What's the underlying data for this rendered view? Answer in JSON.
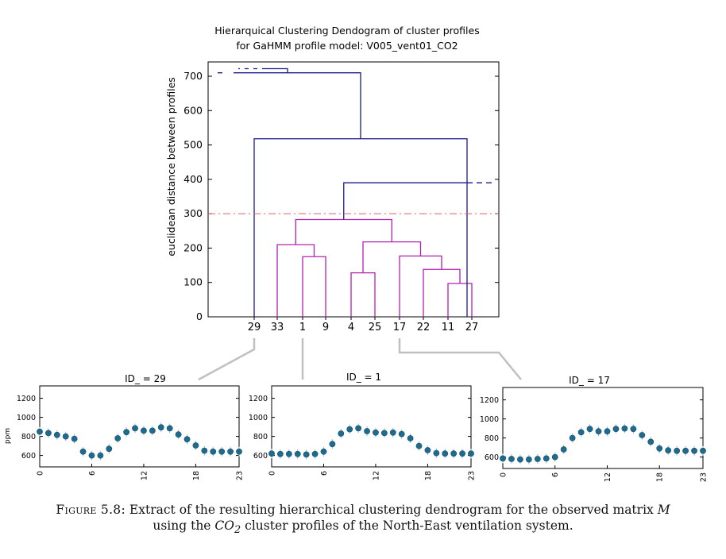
{
  "dendrogram": {
    "title_line1": "Hierarquical Clustering Dendogram of cluster profiles",
    "title_line2": "for GaHMM profile model: V005_vent01_CO2",
    "ylabel": "euclidean distance between profiles",
    "threshold": 300,
    "colors": {
      "upper": "#1a1a8c",
      "cluster": "#b020b0",
      "threshold": "#e06060",
      "connector": "#c0c0c0",
      "point": "#1f6a8f"
    }
  },
  "chart_data": [
    {
      "type": "dendrogram",
      "title": "Hierarquical Clustering Dendogram of cluster profiles for GaHMM profile model: V005_vent01_CO2",
      "ylabel": "euclidean distance between profiles",
      "ylim": [
        0,
        720
      ],
      "yticks": [
        0,
        100,
        200,
        300,
        400,
        500,
        600,
        700
      ],
      "leaves": [
        "29",
        "33",
        "1",
        "9",
        "4",
        "25",
        "17",
        "22",
        "11",
        "27"
      ],
      "threshold_line": 300,
      "merges": [
        {
          "left": "11",
          "right": "27",
          "height": 97
        },
        {
          "left": "4",
          "right": "25",
          "height": 128
        },
        {
          "left": "22",
          "right": "11+27",
          "height": 138
        },
        {
          "left": "1",
          "right": "9",
          "height": 175
        },
        {
          "left": "17",
          "right": "22+11+27",
          "height": 177
        },
        {
          "left": "33",
          "right": "1+9",
          "height": 210
        },
        {
          "left": "4+25",
          "right": "17+22+11+27",
          "height": 218
        },
        {
          "left": "33+1+9",
          "right": "4+25+17+22+11+27",
          "height": 283
        },
        {
          "left": "cluster",
          "right": "truncated",
          "height": 390
        },
        {
          "left": "29",
          "right": "cluster+truncated",
          "height": 518
        },
        {
          "left": "truncated",
          "right": "29+rest",
          "height": 710
        },
        {
          "left": "truncated",
          "right": "all",
          "height": 722
        }
      ],
      "grid": false
    },
    {
      "type": "scatter",
      "title": "ID_ = 29",
      "ylabel": "ppm",
      "xticks": [
        0,
        6,
        12,
        18,
        23
      ],
      "yticks": [
        600,
        800,
        1000,
        1200
      ],
      "ylim": [
        480,
        1330
      ],
      "xlim": [
        0,
        23
      ],
      "x": [
        0,
        1,
        2,
        3,
        4,
        5,
        6,
        7,
        8,
        9,
        10,
        11,
        12,
        13,
        14,
        15,
        16,
        17,
        18,
        19,
        20,
        21,
        22,
        23
      ],
      "values": [
        850,
        835,
        815,
        800,
        775,
        640,
        600,
        600,
        670,
        780,
        845,
        885,
        860,
        860,
        895,
        885,
        820,
        770,
        705,
        650,
        640,
        640,
        640,
        640
      ]
    },
    {
      "type": "scatter",
      "title": "ID_ = 1",
      "ylabel": "",
      "xticks": [
        0,
        6,
        12,
        18,
        23
      ],
      "yticks": [
        600,
        800,
        1000,
        1200
      ],
      "ylim": [
        480,
        1330
      ],
      "xlim": [
        0,
        23
      ],
      "x": [
        0,
        1,
        2,
        3,
        4,
        5,
        6,
        7,
        8,
        9,
        10,
        11,
        12,
        13,
        14,
        15,
        16,
        17,
        18,
        19,
        20,
        21,
        22,
        23
      ],
      "values": [
        620,
        615,
        615,
        615,
        610,
        615,
        640,
        720,
        830,
        875,
        885,
        855,
        840,
        835,
        840,
        825,
        780,
        700,
        655,
        625,
        620,
        620,
        620,
        620
      ]
    },
    {
      "type": "scatter",
      "title": "ID_ = 17",
      "ylabel": "",
      "xticks": [
        0,
        6,
        12,
        18,
        23
      ],
      "yticks": [
        600,
        800,
        1000,
        1200
      ],
      "ylim": [
        480,
        1330
      ],
      "xlim": [
        0,
        23
      ],
      "x": [
        0,
        1,
        2,
        3,
        4,
        5,
        6,
        7,
        8,
        9,
        10,
        11,
        12,
        13,
        14,
        15,
        16,
        17,
        18,
        19,
        20,
        21,
        22,
        23
      ],
      "values": [
        585,
        580,
        575,
        575,
        580,
        585,
        600,
        680,
        800,
        860,
        895,
        870,
        870,
        895,
        900,
        895,
        830,
        760,
        690,
        670,
        665,
        665,
        665,
        665
      ]
    }
  ],
  "caption": {
    "label": "Figure 5.8:",
    "text_a": "Extract of the resulting hierarchical clustering dendrogram for the observed matrix",
    "matrix": "M",
    "text_b": "using the",
    "chem": "CO",
    "chem_sub": "2",
    "text_c": "cluster profiles of the North-East ventilation system."
  }
}
